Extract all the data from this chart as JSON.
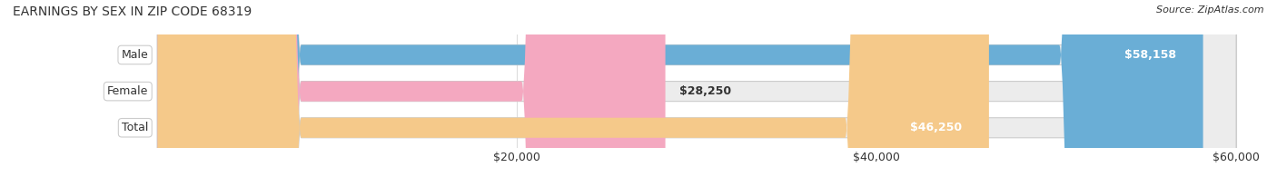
{
  "title": "EARNINGS BY SEX IN ZIP CODE 68319",
  "source": "Source: ZipAtlas.com",
  "categories": [
    "Male",
    "Female",
    "Total"
  ],
  "values": [
    58158,
    28250,
    46250
  ],
  "bar_colors": [
    "#6aaed6",
    "#f4a8c0",
    "#f5c98a"
  ],
  "bar_bg_color": "#f0f0f0",
  "value_labels": [
    "$58,158",
    "$28,250",
    "$46,250"
  ],
  "xlim": [
    0,
    60000
  ],
  "xticks": [
    20000,
    40000,
    60000
  ],
  "xtick_labels": [
    "$20,000",
    "$40,000",
    "$60,000"
  ],
  "figsize": [
    14.06,
    1.95
  ],
  "dpi": 100,
  "title_fontsize": 10,
  "label_fontsize": 9,
  "source_fontsize": 8,
  "bar_height": 0.55,
  "bar_edge_color": "#cccccc",
  "bg_color": "#ffffff",
  "grid_color": "#dddddd",
  "text_color": "#333333",
  "label_bg_color": "#ffffff",
  "value_text_color": "#ffffff"
}
